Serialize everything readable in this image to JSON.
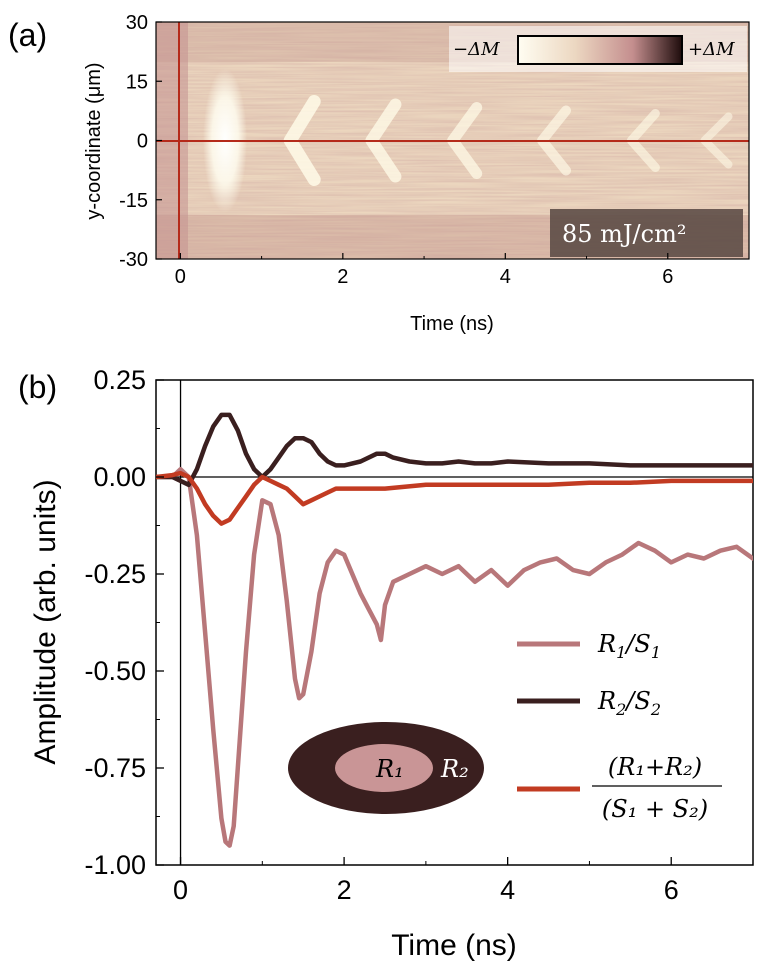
{
  "panel_a": {
    "label": "(a)",
    "xlabel": "Time (ns)",
    "ylabel": "y-coordinate (μm)",
    "xticks": [
      "0",
      "2",
      "4",
      "6"
    ],
    "yticks": [
      "30",
      "15",
      "0",
      "-15",
      "-30"
    ],
    "colorbar_low": "−ΔM",
    "colorbar_high": "+ΔM",
    "fluence": "85 mJ/cm²",
    "colors": {
      "low": "#fffdf2",
      "mid": "#ecd7c1",
      "high": "#c48e8e",
      "max": "#1e0c0c",
      "marker": "#b52a1a"
    }
  },
  "chart_data": [
    {
      "type": "heatmap",
      "title": "",
      "xlabel": "Time (ns)",
      "ylabel": "y-coordinate (μm)",
      "xlim": [
        -0.3,
        7
      ],
      "ylim": [
        -30,
        30
      ],
      "x_ticks": [
        0,
        2,
        4,
        6
      ],
      "y_ticks": [
        30,
        15,
        0,
        -15,
        -30
      ],
      "annotation": "85 mJ/cm²",
      "colorbar": [
        "−ΔM",
        "+ΔM"
      ],
      "reference_lines": {
        "x": 0,
        "y": 0
      },
      "features": [
        {
          "center_ns": 0.55,
          "label": "bright"
        },
        {
          "center_ns": 1.5,
          "label": "bright"
        },
        {
          "center_ns": 2.5,
          "label": "bright"
        },
        {
          "center_ns": 3.5,
          "label": "bright"
        },
        {
          "center_ns": 4.6,
          "label": "bright"
        },
        {
          "center_ns": 5.7,
          "label": "bright"
        },
        {
          "center_ns": 6.6,
          "label": "bright"
        }
      ]
    },
    {
      "type": "line",
      "title": "",
      "xlabel": "Time (ns)",
      "ylabel": "Amplitude (arb. units)",
      "xlim": [
        -0.3,
        7
      ],
      "ylim": [
        -1.0,
        0.25
      ],
      "x_ticks": [
        0,
        2,
        4,
        6
      ],
      "y_ticks": [
        0.25,
        0.0,
        -0.25,
        -0.5,
        -0.75,
        -1.0
      ],
      "series": [
        {
          "name": "R1/S1",
          "color": "#b8777a",
          "x": [
            -0.3,
            -0.1,
            0.0,
            0.1,
            0.2,
            0.3,
            0.4,
            0.5,
            0.55,
            0.6,
            0.65,
            0.7,
            0.8,
            0.9,
            1.0,
            1.1,
            1.2,
            1.3,
            1.4,
            1.45,
            1.5,
            1.6,
            1.7,
            1.8,
            1.9,
            2.0,
            2.1,
            2.2,
            2.3,
            2.4,
            2.45,
            2.5,
            2.6,
            2.8,
            3.0,
            3.2,
            3.4,
            3.6,
            3.8,
            4.0,
            4.2,
            4.4,
            4.6,
            4.8,
            5.0,
            5.2,
            5.4,
            5.6,
            5.8,
            6.0,
            6.2,
            6.4,
            6.6,
            6.8,
            7.0
          ],
          "y": [
            0.0,
            0.0,
            0.02,
            0.0,
            -0.15,
            -0.4,
            -0.65,
            -0.88,
            -0.94,
            -0.95,
            -0.9,
            -0.75,
            -0.45,
            -0.2,
            -0.06,
            -0.07,
            -0.15,
            -0.32,
            -0.52,
            -0.57,
            -0.56,
            -0.45,
            -0.3,
            -0.22,
            -0.19,
            -0.2,
            -0.25,
            -0.3,
            -0.34,
            -0.38,
            -0.42,
            -0.33,
            -0.27,
            -0.25,
            -0.23,
            -0.25,
            -0.23,
            -0.27,
            -0.24,
            -0.28,
            -0.24,
            -0.22,
            -0.21,
            -0.24,
            -0.25,
            -0.22,
            -0.2,
            -0.17,
            -0.19,
            -0.22,
            -0.2,
            -0.21,
            -0.19,
            -0.18,
            -0.21
          ]
        },
        {
          "name": "R2/S2",
          "color": "#3a1f1f",
          "x": [
            -0.3,
            -0.1,
            0.0,
            0.1,
            0.2,
            0.3,
            0.4,
            0.5,
            0.6,
            0.7,
            0.8,
            0.9,
            1.0,
            1.1,
            1.2,
            1.3,
            1.4,
            1.5,
            1.6,
            1.7,
            1.8,
            1.9,
            2.0,
            2.2,
            2.4,
            2.5,
            2.6,
            2.8,
            3.0,
            3.2,
            3.4,
            3.6,
            3.8,
            4.0,
            4.5,
            5.0,
            5.5,
            6.0,
            6.5,
            7.0
          ],
          "y": [
            0.0,
            0.0,
            -0.01,
            -0.02,
            0.02,
            0.08,
            0.13,
            0.16,
            0.16,
            0.12,
            0.06,
            0.02,
            0.0,
            0.02,
            0.05,
            0.08,
            0.1,
            0.1,
            0.09,
            0.06,
            0.04,
            0.03,
            0.03,
            0.04,
            0.06,
            0.06,
            0.05,
            0.04,
            0.035,
            0.035,
            0.04,
            0.035,
            0.035,
            0.04,
            0.035,
            0.035,
            0.03,
            0.03,
            0.03,
            0.03
          ]
        },
        {
          "name": "(R1+R2)/(S1+S2)",
          "color": "#c23b22",
          "x": [
            -0.3,
            -0.1,
            0.0,
            0.1,
            0.2,
            0.3,
            0.4,
            0.5,
            0.6,
            0.7,
            0.8,
            0.9,
            1.0,
            1.1,
            1.2,
            1.3,
            1.4,
            1.5,
            1.6,
            1.7,
            1.8,
            1.9,
            2.0,
            2.5,
            3.0,
            3.5,
            4.0,
            4.5,
            5.0,
            5.5,
            6.0,
            6.5,
            7.0
          ],
          "y": [
            0.0,
            0.005,
            0.01,
            0.0,
            -0.03,
            -0.07,
            -0.1,
            -0.12,
            -0.11,
            -0.08,
            -0.05,
            -0.02,
            0.0,
            -0.01,
            -0.02,
            -0.03,
            -0.05,
            -0.07,
            -0.06,
            -0.05,
            -0.04,
            -0.03,
            -0.03,
            -0.03,
            -0.02,
            -0.02,
            -0.02,
            -0.02,
            -0.015,
            -0.015,
            -0.01,
            -0.01,
            -0.01
          ]
        }
      ],
      "legend": [
        "R1/S1",
        "R2/S2",
        "(R1+R2)/(S1+S2)"
      ],
      "legend_position": "bottom-right",
      "inset": {
        "inner": "R1",
        "outer": "R2"
      }
    }
  ],
  "panel_b": {
    "label": "(b)",
    "xlabel": "Time (ns)",
    "ylabel": "Amplitude (arb. units)",
    "xticks": [
      "0",
      "2",
      "4",
      "6"
    ],
    "yticks": [
      "0.25",
      "0.00",
      "-0.25",
      "-0.50",
      "-0.75",
      "-1.00"
    ],
    "legend": {
      "r1_num": "R",
      "r1_sub": "1",
      "r1_den": "S",
      "r1_den_sub": "1",
      "r2_num": "R",
      "r2_sub": "2",
      "r2_den": "S",
      "r2_den_sub": "2",
      "combo_num": "(R₁+R₂)",
      "combo_den": "(S₁ + S₂)"
    },
    "inset_inner": "R₁",
    "inset_outer": "R₂",
    "colors": {
      "r1": "#b8777a",
      "r2": "#3a1f1f",
      "combo": "#c23b22",
      "ellipse_outer": "#3a1f1f",
      "ellipse_inner": "#c99596"
    }
  }
}
